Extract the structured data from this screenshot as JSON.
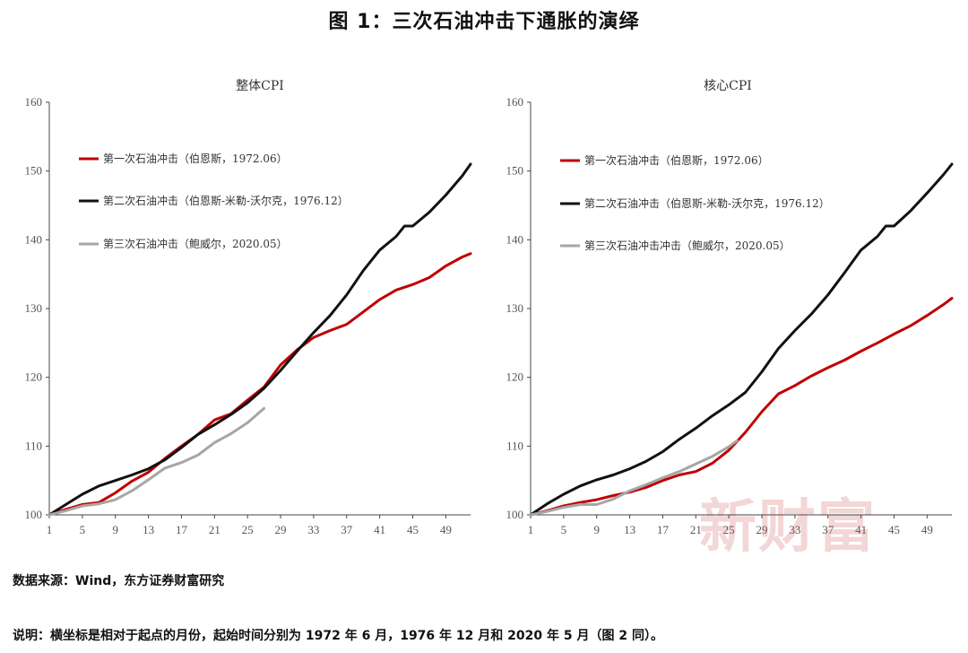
{
  "figure_title": "图 1：三次石油冲击下通胀的演绎",
  "watermark": "新财富",
  "source_note": "数据来源：Wind，东方证券财富研究",
  "explain_note": "说明：横坐标是相对于起点的月份，起始时间分别为 1972 年 6 月，1976 年 12 月和 2020 年 5 月（图 2 同）。",
  "colors": {
    "first": "#c00000",
    "second": "#111111",
    "third": "#a6a6a6"
  },
  "chart_data": [
    {
      "type": "line",
      "title": "整体CPI",
      "xlabel": "",
      "ylabel": "",
      "xlim": [
        1,
        52
      ],
      "ylim": [
        100,
        160
      ],
      "xticks": [
        1,
        5,
        9,
        13,
        17,
        21,
        25,
        29,
        33,
        37,
        41,
        45,
        49
      ],
      "yticks": [
        100,
        110,
        120,
        130,
        140,
        150,
        160
      ],
      "grid": false,
      "legend_position": "top-left",
      "series": [
        {
          "name": "第一次石油冲击（伯恩斯，1972.06）",
          "color": "#c00000",
          "x": [
            1,
            3,
            5,
            7,
            9,
            11,
            13,
            15,
            17,
            19,
            21,
            23,
            25,
            27,
            29,
            31,
            33,
            35,
            37,
            39,
            41,
            43,
            45,
            47,
            49,
            51,
            52
          ],
          "y": [
            100,
            100.8,
            101.5,
            101.8,
            103.2,
            104.9,
            106.2,
            108.2,
            110,
            111.7,
            113.8,
            114.7,
            116.7,
            118.6,
            121.8,
            124,
            125.8,
            126.8,
            127.7,
            129.5,
            131.3,
            132.7,
            133.5,
            134.5,
            136.2,
            137.5,
            138
          ]
        },
        {
          "name": "第二次石油冲击（伯恩斯-米勒-沃尔克，1976.12）",
          "color": "#111111",
          "x": [
            1,
            3,
            5,
            7,
            9,
            11,
            13,
            15,
            17,
            19,
            21,
            23,
            25,
            27,
            29,
            31,
            33,
            35,
            37,
            39,
            41,
            43,
            44,
            45,
            47,
            49,
            51,
            52
          ],
          "y": [
            100,
            101.5,
            103,
            104.2,
            105,
            105.8,
            106.7,
            108,
            109.8,
            111.7,
            113.1,
            114.6,
            116.3,
            118.4,
            121,
            123.8,
            126.5,
            129,
            132,
            135.5,
            138.5,
            140.5,
            142,
            142,
            144,
            146.5,
            149.3,
            151
          ]
        },
        {
          "name": "第三次石油冲击（鲍威尔，2020.05）",
          "color": "#a6a6a6",
          "x": [
            1,
            3,
            5,
            7,
            9,
            11,
            13,
            15,
            17,
            19,
            21,
            23,
            25,
            27
          ],
          "y": [
            100,
            100.6,
            101.3,
            101.6,
            102.2,
            103.5,
            105.1,
            106.8,
            107.6,
            108.7,
            110.5,
            111.8,
            113.4,
            115.5
          ]
        }
      ]
    },
    {
      "type": "line",
      "title": "核心CPI",
      "xlabel": "",
      "ylabel": "",
      "xlim": [
        1,
        52
      ],
      "ylim": [
        100,
        160
      ],
      "xticks": [
        1,
        5,
        9,
        13,
        17,
        21,
        25,
        29,
        33,
        37,
        41,
        45,
        49
      ],
      "yticks": [
        100,
        110,
        120,
        130,
        140,
        150,
        160
      ],
      "grid": false,
      "legend_position": "top-left",
      "series": [
        {
          "name": "第一次石油冲击（伯恩斯，1972.06）",
          "color": "#c00000",
          "x": [
            1,
            3,
            5,
            7,
            9,
            11,
            13,
            15,
            17,
            19,
            21,
            23,
            25,
            27,
            29,
            31,
            33,
            35,
            37,
            39,
            41,
            43,
            45,
            47,
            49,
            51,
            52
          ],
          "y": [
            100,
            100.6,
            101.3,
            101.8,
            102.2,
            102.8,
            103.3,
            104,
            105,
            105.8,
            106.3,
            107.5,
            109.4,
            112,
            115,
            117.6,
            118.8,
            120.2,
            121.4,
            122.5,
            123.8,
            125,
            126.3,
            127.5,
            129,
            130.6,
            131.5
          ]
        },
        {
          "name": "第二次石油冲击（伯恩斯-米勒-沃尔克，1976.12）",
          "color": "#111111",
          "x": [
            1,
            3,
            5,
            7,
            9,
            11,
            13,
            15,
            17,
            19,
            21,
            23,
            25,
            27,
            29,
            31,
            33,
            35,
            37,
            39,
            41,
            43,
            44,
            45,
            47,
            49,
            51,
            52
          ],
          "y": [
            100,
            101.6,
            103,
            104.2,
            105.1,
            105.8,
            106.7,
            107.8,
            109.2,
            111,
            112.6,
            114.4,
            116,
            117.8,
            120.8,
            124.2,
            126.8,
            129.2,
            132,
            135.2,
            138.5,
            140.5,
            142,
            142,
            144.2,
            146.8,
            149.5,
            151
          ]
        },
        {
          "name": "第三次石油冲击冲击（鲍威尔，2020.05）",
          "color": "#a6a6a6",
          "x": [
            1,
            3,
            5,
            7,
            9,
            11,
            13,
            15,
            17,
            19,
            21,
            23,
            25,
            26
          ],
          "y": [
            100,
            100.5,
            101.1,
            101.5,
            101.5,
            102.3,
            103.5,
            104.4,
            105.4,
            106.3,
            107.4,
            108.5,
            109.9,
            110.8
          ]
        }
      ]
    }
  ]
}
